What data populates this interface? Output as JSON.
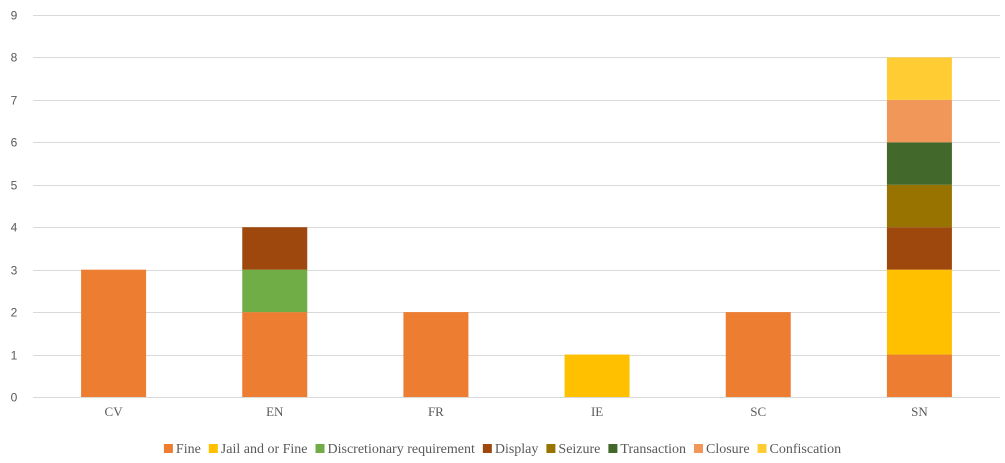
{
  "chart_data": {
    "type": "bar",
    "stacked": true,
    "categories": [
      "CV",
      "EN",
      "FR",
      "IE",
      "SC",
      "SN"
    ],
    "ylim": [
      0,
      9
    ],
    "yticks": [
      0,
      1,
      2,
      3,
      4,
      5,
      6,
      7,
      8,
      9
    ],
    "grid": "horizontal",
    "legend_position": "bottom",
    "series": [
      {
        "name": "Fine",
        "color": "#ED7D31",
        "values": [
          3,
          2,
          2,
          0,
          2,
          1
        ]
      },
      {
        "name": "Jail and or Fine",
        "color": "#FFC000",
        "values": [
          0,
          0,
          0,
          1,
          0,
          2
        ]
      },
      {
        "name": "Discretionary requirement",
        "color": "#70AD47",
        "values": [
          0,
          1,
          0,
          0,
          0,
          0
        ]
      },
      {
        "name": "Display",
        "color": "#9E480E",
        "values": [
          0,
          1,
          0,
          0,
          0,
          1
        ]
      },
      {
        "name": "Seizure",
        "color": "#997300",
        "values": [
          0,
          0,
          0,
          0,
          0,
          1
        ]
      },
      {
        "name": "Transaction",
        "color": "#43682B",
        "values": [
          0,
          0,
          0,
          0,
          0,
          1
        ]
      },
      {
        "name": "Closure",
        "color": "#F1975A",
        "values": [
          0,
          0,
          0,
          0,
          0,
          1
        ]
      },
      {
        "name": "Confiscation",
        "color": "#FFCD33",
        "values": [
          0,
          0,
          0,
          0,
          0,
          1
        ]
      }
    ]
  }
}
